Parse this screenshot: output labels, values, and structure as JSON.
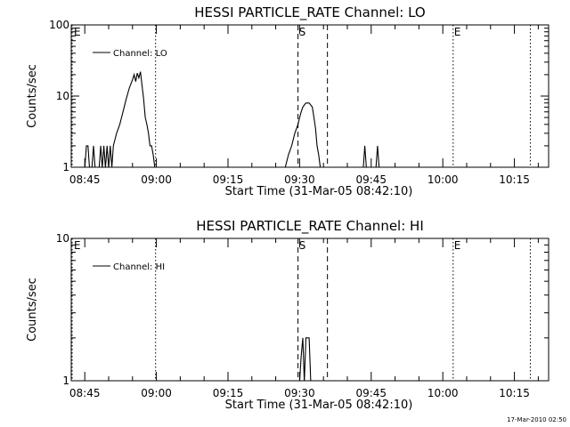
{
  "stamp": "17-Mar-2010 02:50",
  "chart_data": [
    {
      "type": "line",
      "title": "HESSI PARTICLE_RATE Channel: LO",
      "xlabel": "Start Time (31-Mar-05 08:42:10)",
      "ylabel": "Counts/sec",
      "y_scale": "log",
      "ylim": [
        1,
        100
      ],
      "y_ticks": [
        {
          "value": 1,
          "label": "1"
        },
        {
          "value": 10,
          "label": "10"
        },
        {
          "value": 100,
          "label": "100"
        }
      ],
      "xlim": [
        "08:42:10",
        "10:22:10"
      ],
      "x_ticks": [
        "08:45",
        "09:00",
        "09:15",
        "09:30",
        "09:45",
        "10:00",
        "10:15"
      ],
      "grid": false,
      "legend": {
        "position": "top-left",
        "entries": [
          "Channel: LO"
        ]
      },
      "markers": [
        {
          "label": "E",
          "time": "08:42:10",
          "style": "dotted"
        },
        {
          "label": "",
          "time": "08:59:50",
          "style": "dotted"
        },
        {
          "label": "S",
          "time": "09:29:40",
          "style": "dashed"
        },
        {
          "label": "",
          "time": "09:35:50",
          "style": "dashed"
        },
        {
          "label": "E",
          "time": "10:02:10",
          "style": "dotted"
        },
        {
          "label": "",
          "time": "10:18:20",
          "style": "dotted"
        }
      ],
      "series": [
        {
          "name": "Channel: LO",
          "points": [
            [
              "08:45:00",
              0.5
            ],
            [
              "08:45:20",
              2
            ],
            [
              "08:45:40",
              2
            ],
            [
              "08:46:00",
              0.5
            ],
            [
              "08:46:30",
              0.5
            ],
            [
              "08:46:50",
              2
            ],
            [
              "08:47:10",
              0.5
            ],
            [
              "08:48:00",
              0.5
            ],
            [
              "08:48:20",
              2
            ],
            [
              "08:48:40",
              0.5
            ],
            [
              "08:49:00",
              2
            ],
            [
              "08:49:20",
              0.5
            ],
            [
              "08:49:40",
              2
            ],
            [
              "08:50:00",
              0.5
            ],
            [
              "08:50:20",
              2
            ],
            [
              "08:50:40",
              1
            ],
            [
              "08:51:00",
              2
            ],
            [
              "08:51:40",
              3
            ],
            [
              "08:52:20",
              4
            ],
            [
              "08:53:00",
              6
            ],
            [
              "08:53:40",
              9
            ],
            [
              "08:54:20",
              13
            ],
            [
              "08:55:00",
              17
            ],
            [
              "08:55:20",
              20
            ],
            [
              "08:55:40",
              16
            ],
            [
              "08:56:00",
              21
            ],
            [
              "08:56:20",
              18
            ],
            [
              "08:56:40",
              22
            ],
            [
              "08:57:00",
              14
            ],
            [
              "08:57:20",
              9
            ],
            [
              "08:57:40",
              5
            ],
            [
              "08:58:00",
              4
            ],
            [
              "08:58:20",
              3
            ],
            [
              "08:58:40",
              2
            ],
            [
              "08:59:00",
              2
            ],
            [
              "08:59:20",
              1.5
            ],
            [
              "08:59:40",
              1
            ],
            [
              "09:00:00",
              0.5
            ],
            [
              "09:26:00",
              0.5
            ],
            [
              "09:27:00",
              1
            ],
            [
              "09:27:40",
              1.5
            ],
            [
              "09:28:20",
              2
            ],
            [
              "09:29:00",
              3
            ],
            [
              "09:29:40",
              4
            ],
            [
              "09:30:00",
              5
            ],
            [
              "09:30:20",
              6
            ],
            [
              "09:30:40",
              7
            ],
            [
              "09:31:00",
              7.5
            ],
            [
              "09:31:20",
              8
            ],
            [
              "09:32:00",
              8
            ],
            [
              "09:32:40",
              7
            ],
            [
              "09:33:00",
              5
            ],
            [
              "09:33:20",
              3.5
            ],
            [
              "09:33:40",
              2
            ],
            [
              "09:34:00",
              1.5
            ],
            [
              "09:34:20",
              1
            ],
            [
              "09:34:40",
              0.5
            ],
            [
              "09:43:20",
              0.5
            ],
            [
              "09:43:40",
              2
            ],
            [
              "09:44:00",
              0.5
            ],
            [
              "09:46:00",
              0.5
            ],
            [
              "09:46:20",
              2
            ],
            [
              "09:46:40",
              0.5
            ]
          ]
        }
      ]
    },
    {
      "type": "line",
      "title": "HESSI PARTICLE_RATE Channel: HI",
      "xlabel": "Start Time (31-Mar-05 08:42:10)",
      "ylabel": "Counts/sec",
      "y_scale": "log",
      "ylim": [
        1,
        10
      ],
      "y_ticks": [
        {
          "value": 1,
          "label": "1"
        },
        {
          "value": 10,
          "label": "10"
        }
      ],
      "xlim": [
        "08:42:10",
        "10:22:10"
      ],
      "x_ticks": [
        "08:45",
        "09:00",
        "09:15",
        "09:30",
        "09:45",
        "10:00",
        "10:15"
      ],
      "grid": false,
      "legend": {
        "position": "top-left",
        "entries": [
          "Channel: HI"
        ]
      },
      "markers": [
        {
          "label": "E",
          "time": "08:42:10",
          "style": "dotted"
        },
        {
          "label": "",
          "time": "08:59:50",
          "style": "dotted"
        },
        {
          "label": "S",
          "time": "09:29:40",
          "style": "dashed"
        },
        {
          "label": "",
          "time": "09:35:50",
          "style": "dashed"
        },
        {
          "label": "E",
          "time": "10:02:10",
          "style": "dotted"
        },
        {
          "label": "",
          "time": "10:18:20",
          "style": "dotted"
        }
      ],
      "series": [
        {
          "name": "Channel: HI",
          "points": [
            [
              "09:30:00",
              0.9
            ],
            [
              "09:30:20",
              1.5
            ],
            [
              "09:30:40",
              2
            ],
            [
              "09:31:00",
              0.9
            ],
            [
              "09:31:20",
              2
            ],
            [
              "09:32:00",
              2
            ],
            [
              "09:32:20",
              0.9
            ]
          ]
        }
      ]
    }
  ]
}
